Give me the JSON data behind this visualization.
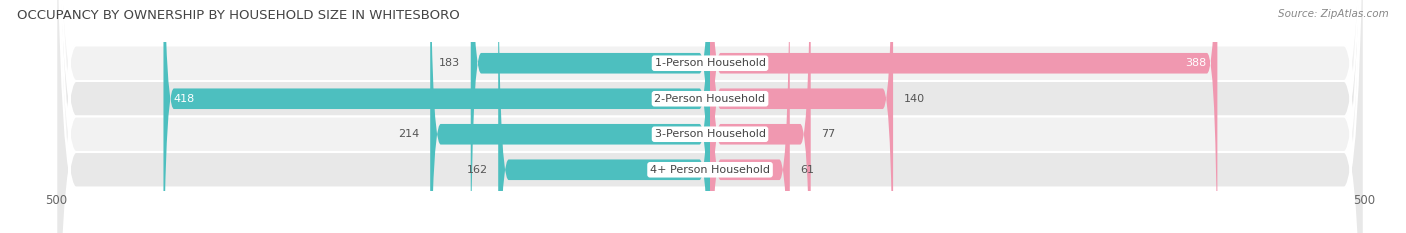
{
  "title": "OCCUPANCY BY OWNERSHIP BY HOUSEHOLD SIZE IN WHITESBORO",
  "source": "Source: ZipAtlas.com",
  "categories": [
    "1-Person Household",
    "2-Person Household",
    "3-Person Household",
    "4+ Person Household"
  ],
  "owner_values": [
    183,
    418,
    214,
    162
  ],
  "renter_values": [
    388,
    140,
    77,
    61
  ],
  "owner_color": "#4DBFBF",
  "renter_color": "#F098B0",
  "row_bg_light": "#F2F2F2",
  "row_bg_dark": "#E8E8E8",
  "label_color": "#555555",
  "white": "#FFFFFF",
  "axis_limit": 500,
  "title_fontsize": 9.5,
  "source_fontsize": 7.5,
  "tick_fontsize": 8.5,
  "legend_fontsize": 8.5,
  "category_fontsize": 8,
  "value_fontsize": 8,
  "background_color": "#FFFFFF"
}
